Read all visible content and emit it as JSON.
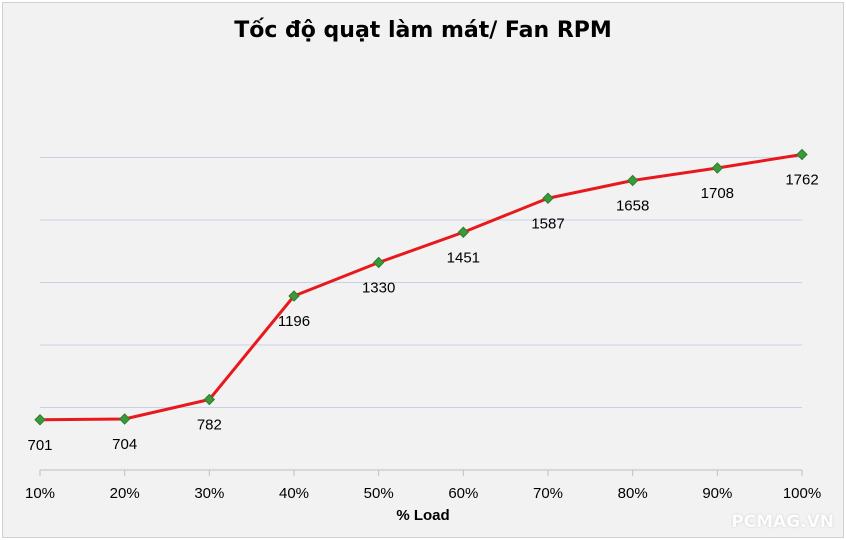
{
  "chart_data": {
    "type": "line",
    "title": "Tốc độ quạt làm mát/ Fan RPM",
    "xlabel": "% Load",
    "ylabel": "",
    "categories": [
      "10%",
      "20%",
      "30%",
      "40%",
      "50%",
      "60%",
      "70%",
      "80%",
      "90%",
      "100%"
    ],
    "series": [
      {
        "values": [
          701,
          704,
          782,
          1196,
          1330,
          1451,
          1587,
          1658,
          1708,
          1762
        ]
      }
    ],
    "ylim": [
      500,
      2000
    ],
    "grid": true,
    "legend": "none",
    "line_color": "#e8191c",
    "marker_color": "#3a9a3a",
    "gridline_color": "#c8d2e6"
  },
  "watermark": "PCMAG.VN"
}
